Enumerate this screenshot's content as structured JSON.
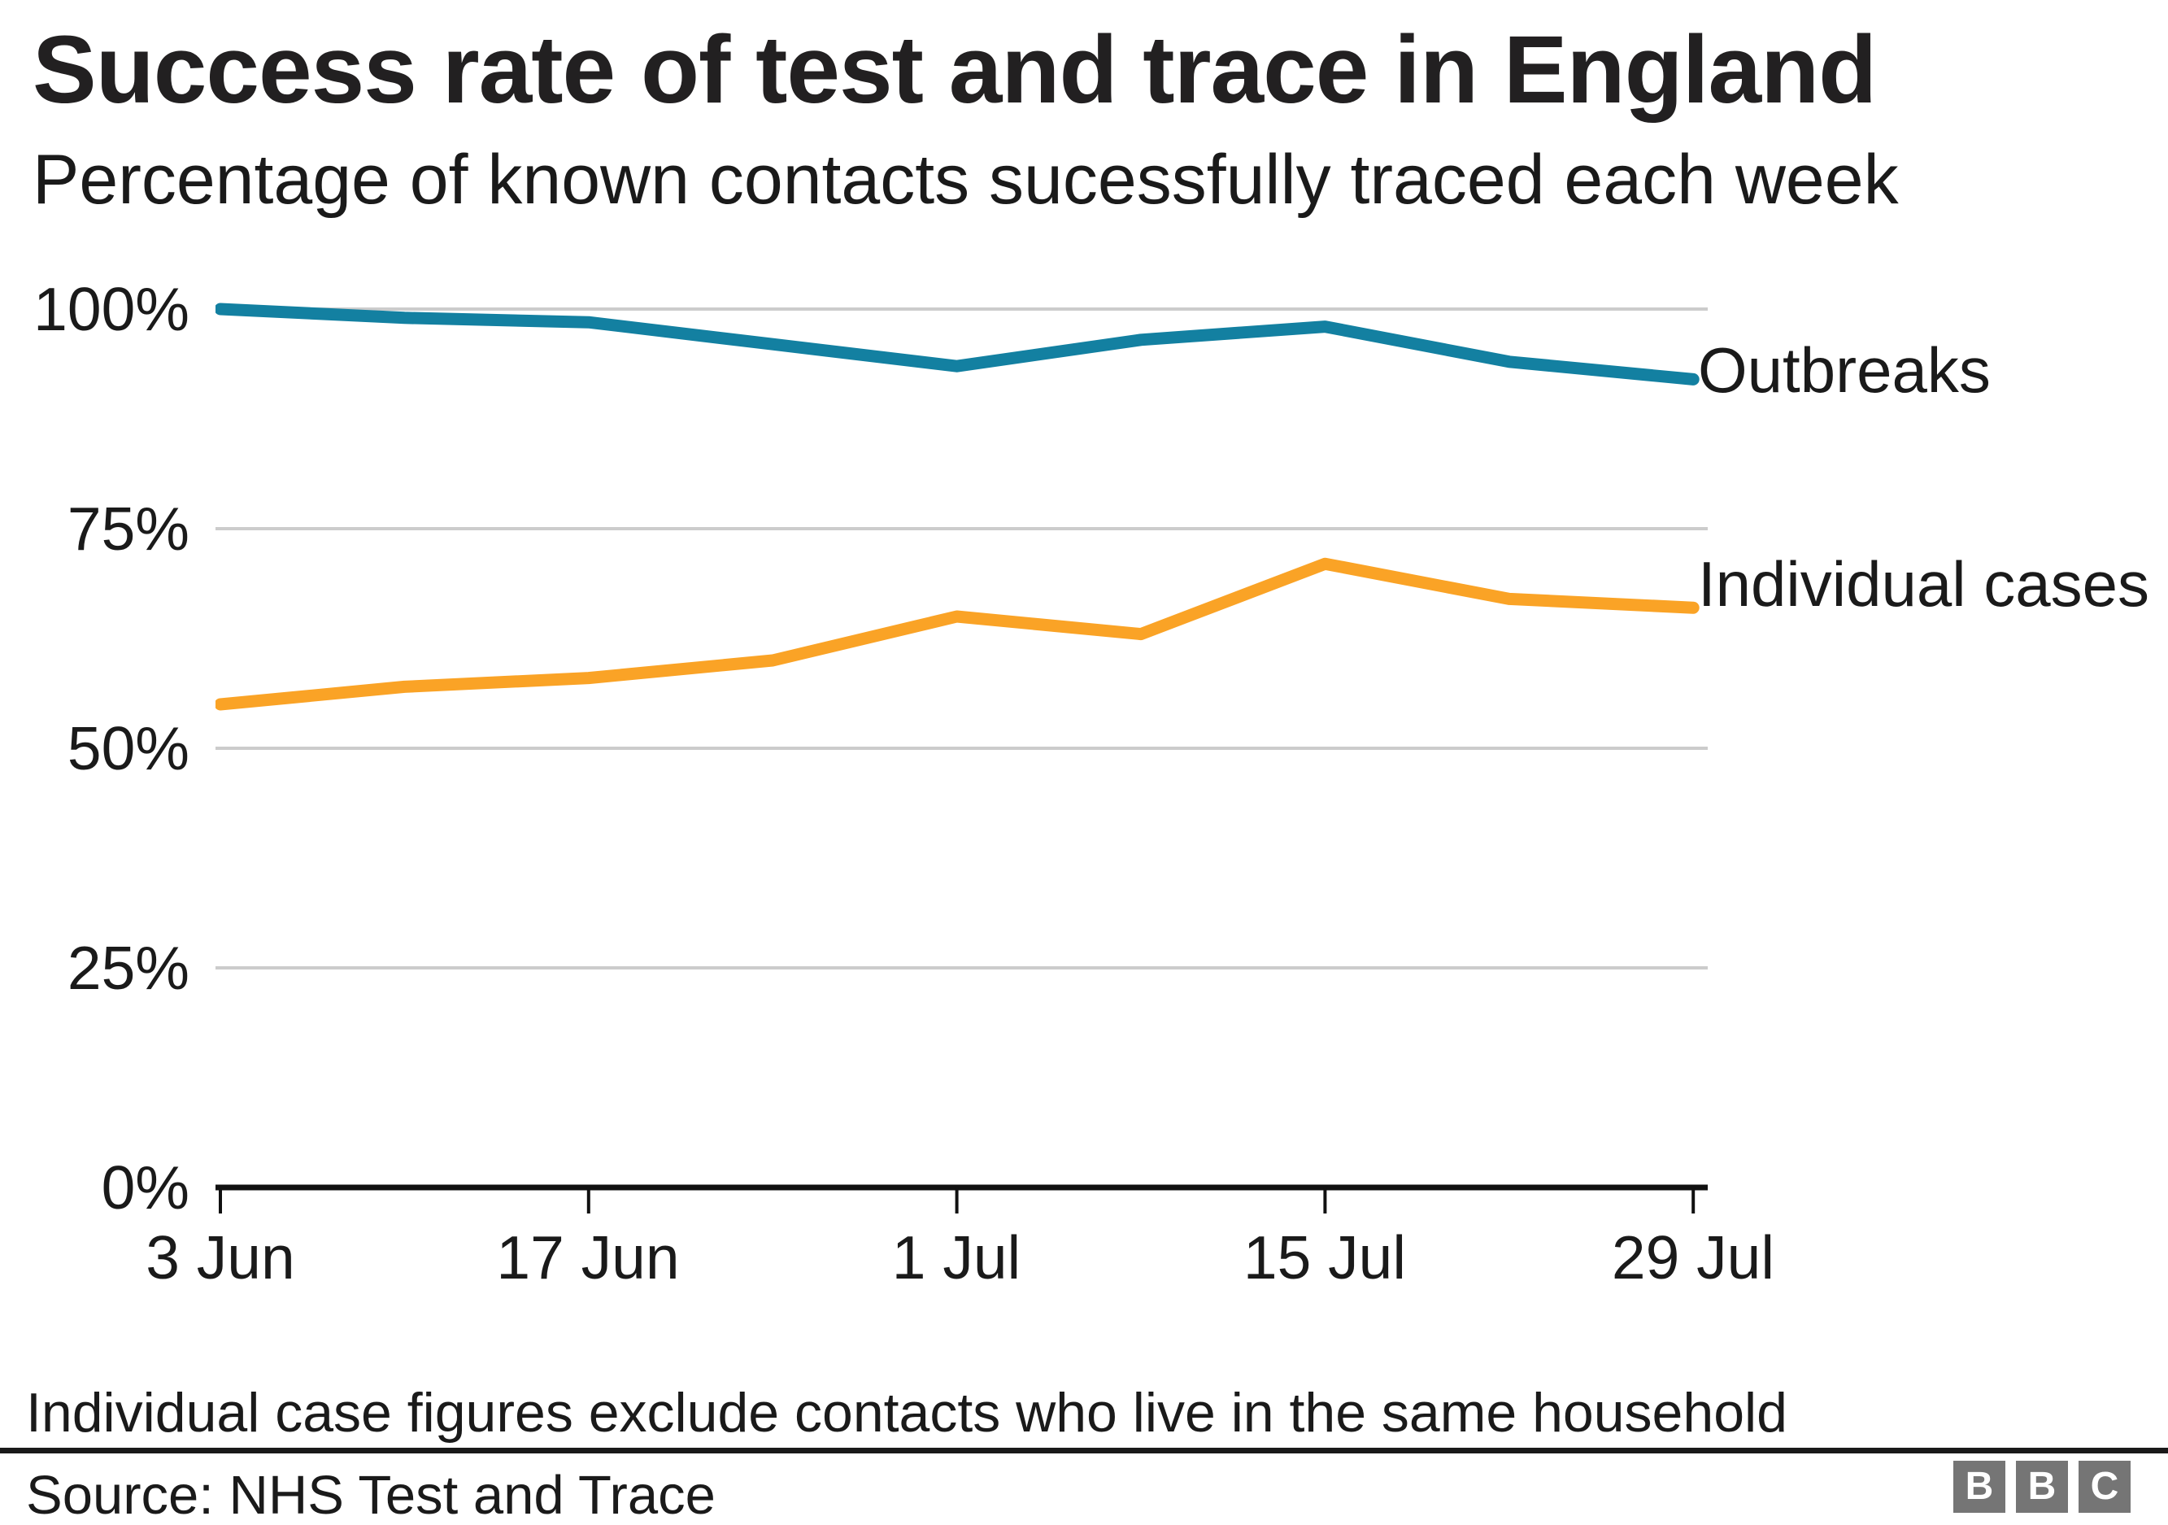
{
  "header": {
    "title": "Success rate of test and trace in England",
    "subtitle": "Percentage of known contacts sucessfully traced each week"
  },
  "chart_data": {
    "type": "line",
    "x": [
      "3 Jun",
      "10 Jun",
      "17 Jun",
      "24 Jun",
      "1 Jul",
      "8 Jul",
      "15 Jul",
      "22 Jul",
      "29 Jul"
    ],
    "x_tick_labels": [
      "3 Jun",
      "17 Jun",
      "1 Jul",
      "15 Jul",
      "29 Jul"
    ],
    "y_tick_labels": [
      "100%",
      "75%",
      "50%",
      "25%",
      "0%"
    ],
    "ylim": [
      0,
      100
    ],
    "y_ticks_pct": [
      0,
      25,
      50,
      75,
      100
    ],
    "grid": "horizontal",
    "grid_color": "#cccccc",
    "axis_color": "#111111",
    "legend_position": "right of line ends",
    "series": [
      {
        "name": "Outbreaks",
        "color": "#1380A1",
        "values": [
          100,
          99,
          98.5,
          96,
          93.5,
          96.5,
          98,
          94,
          92
        ]
      },
      {
        "name": "Individual cases",
        "color": "#FAA326",
        "values": [
          55,
          57,
          58,
          60,
          65,
          63,
          71,
          67,
          66
        ]
      }
    ]
  },
  "footnote": "Individual case figures exclude contacts who live in the same household",
  "source": "Source: NHS Test and Trace",
  "logo": {
    "letters": [
      "B",
      "B",
      "C"
    ]
  }
}
